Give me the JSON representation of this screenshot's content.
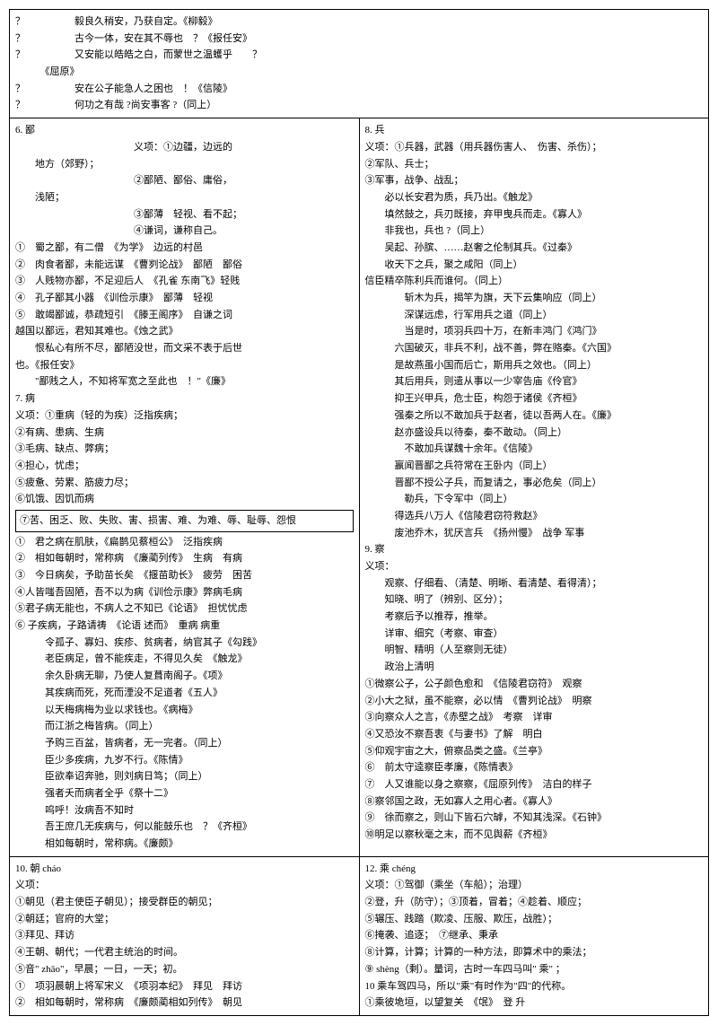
{
  "top": {
    "lines": [
      "？　　　　　毅良久稍安，乃获自定。《柳毅》",
      "？　　　　　古今一体，安在其不辱也　？《报任安》",
      "？　　　　　又安能以皓皓之白，而蒙世之温蠖乎　　？",
      "　　　《屈原》",
      "？　　　　　安在公子能急人之困也　！《信陵》",
      "？　　　　　何功之有哉 ?尚安事客 ?（同上）"
    ]
  },
  "r1c1": {
    "title": "6. 鄙",
    "yixiang_intro": "义项：①边疆，边远的",
    "line2": "地方（郊野）；",
    "line3": "②鄙陋、鄙俗、庸俗，",
    "line4": "浅陋；",
    "line5": "③鄙薄　轻视、看不起；",
    "line6": "④谦词，谦称自己。",
    "ex": [
      "①　蜀之鄙，有二僧　《为学》　边远的村邑",
      "②　肉食者鄙，未能远谋　《曹刿论战》　鄙陋　鄙俗",
      "③　人贱物亦鄙，不足迎后人　《孔雀 东南飞》轻贱",
      "④　孔子鄙其小器　《训俭示康》　鄙薄　轻视",
      "⑤　敢竭鄙诚，恭疏短引　《滕王阁序》　自谦之词",
      "越国以鄙远，君知其难也。《烛之武》",
      "　　恨私心有所不尽，鄙陋没世，而文采不表于后世",
      "也。《报任安》",
      "　　\"鄙贱之人，不知将军宽之至此也　！\"《廉》"
    ],
    "s7_title": "7. 病",
    "s7_yi": [
      "义项：①重病（轻的为疾）泛指疾病；",
      "②有病、患病、生病",
      "③毛病、缺点、弊病；",
      "④担心，忧虑；",
      "⑤疲惫、劳累、筋疲力尽；",
      "⑥饥饿、因饥而病"
    ],
    "s7_box": "⑦苦、困乏、败、失败、害、损害、难、为难、辱、耻辱、怨恨",
    "s7_ex": [
      "①　君之病在肌肤，《扁鹊见蔡桓公》　泛指疾病",
      "②　相如每朝时，常称病　《廉蔺列传》　生病　有病",
      "③　今日病矣，予助苗长矣　《揠苗助长》　疲劳　困苦",
      "④人皆嗤吾固陋，吾不以为病《训俭示康》弊病毛病",
      "⑤君子病无能也，不病人之不知已《论语》　担忧忧虑",
      "⑥ 子疾病，子路请祷　《论语 述而》　重病 病重",
      "　　　令孤子、寡妇、疾疹、贫病者，纳官其子《勾践》",
      "　　　老臣病足，曾不能疾走，不得见久矣　《触龙》",
      "　　　余久卧病无聊，乃使人复葺南阁子。《项》",
      "　　　其疾病而死，死而湮没不足道者《五人》",
      "　　　以天梅病梅为业以求钱也。《病梅》",
      "　　　而江浙之梅皆病。（同上）",
      "　　　予购三百盆，皆病者，无一完者。（同上）",
      "　　　臣少多疾病，九岁不行。《陈情》",
      "　　　臣欲奉诏奔驰，则刘病日笃；（同上）",
      "　　　强者夭而病者全乎《祭十二》",
      "　　　呜呼！汝病吾不知时",
      "　　　吾王庶几无疾病与，何以能鼓乐也　？《齐桓》",
      "　　　相如每朝时，常称病。《廉颇》"
    ]
  },
  "r1c2": {
    "title": "8. 兵",
    "yi": [
      "义项：①兵器，武器（用兵器伤害人、　伤害、杀伤）；",
      "②军队、兵士；",
      "③军事，战争、战乱；",
      "　　必以长安君为质，兵乃出。《触龙》",
      "　　填然鼓之，兵刃既接，弃甲曳兵而走。《寡人》",
      "　　非我也，兵也 ?（同上）",
      "　　吴起、孙膑、……赵奢之伦制其兵。《过秦》",
      "　　收天下之兵，聚之咸阳（同上）",
      "信臣精卒陈利兵而谁何。（同上）",
      "　　　　斩木为兵，揭竿为旗，天下云集响应（同上）",
      "　　　　深谋远虑，行军用兵之道（同上）",
      "　　　　当是时，项羽兵四十万，在新丰鸿门《鸿门》",
      "　　　六国破灭，非兵不利，战不善，弊在赂秦。《六国》",
      "　　　是故燕虽小国而后亡，斯用兵之效也。（同上）",
      "　　　其后用兵，则遣从事以一少宰告庙《伶官》",
      "　　　抑王兴甲兵，危士臣，构怨于诸侯《齐桓》",
      "　　　强秦之所以不敢加兵于赵者，徒以吾两人在。《廉》",
      "　　　赵亦盛设兵以待秦，秦不敢动。（同上）",
      "　　　　不敢加兵谋魏十余年。《信陵》",
      "　　　嬴闻晋鄙之兵符常在王卧内（同上）",
      "　　　晋鄙不授公子兵，而复请之，事必危矣（同上）",
      "　　　　勒兵，下令军中（同上）",
      "　　　得选兵八万人《信陵君窃符救赵》",
      "　　　废池乔木，犹厌言兵　《扬州慢》　战争 军事"
    ],
    "s9_title": "9. 察",
    "s9_yi_label": "义项：",
    "s9_yi": [
      "　　观察、仔细看、（清楚、明晰、看清楚、看得清）；",
      "　　知晓、明了（辨别、区分）；",
      "　　考察后予以推荐，推举。",
      "　　详审、细究（考察、审查）",
      "　　明智、精明（人至察则无徒）",
      "　　政治上清明"
    ],
    "s9_ex": [
      "①微察公子，公子颜色愈和　《信陵君窃符》　观察",
      "②小大之狱，虽不能察，必以情　《曹刿论战》　明察",
      "③向察众人之言，《赤壁之战》　考察　详审",
      "④又恐汝不察吾衷《与妻书》了解　明白",
      "⑤仰观宇宙之大，俯察品类之盛。《兰亭》",
      "⑥　前太守逵察臣孝廉，《陈情表》",
      "⑦　人又谁能以身之察察，《屈原列传》　洁白的样子",
      "⑧察邻国之政，无如寡人之用心者。《寡人》",
      "⑨　徐而察之，则山下皆石穴罅，不知其浅深。《石钟》",
      "⑩明足以察秋毫之末，而不见舆薪《齐桓》"
    ]
  },
  "r2c1": {
    "title": "10. 朝 cháo",
    "yi": [
      "义项：",
      "①朝见（君主使臣子朝见）；接受群臣的朝见；",
      "②朝廷；官府的大堂；",
      "③拜见、拜访",
      "④王朝、朝代；一代君主统治的时间。",
      "⑤音\" zhāo\"，早晨；一日，一天；初。",
      "①　项羽晨朝上将军宋义　《项羽本纪》　拜见　拜访",
      "②　相如每朝时，常称病　《廉颇蔺相如列传》　朝见"
    ]
  },
  "r2c2": {
    "title": "12. 乘 chéng",
    "yi": [
      "义项：①驾御（乘坐（车船）；治理）",
      "②登，升（防守）；③顶着，冒着；④趁着、顺应；",
      "⑤辗压、践踏（欺凌、压服、欺压，战胜）；",
      "⑥掩袭、追逐；　⑦继承、秉承",
      "⑧计算，计算；计算的一种方法，即算术中的乘法；",
      "⑨ shèng（剩）。量词，古时一车四马叫\" 乘\" ；",
      "10 乘车驾四马，所以\"乘\"有时作为\"四\"的代称。",
      "①乘彼垝垣，以望复关　《氓》　登 升"
    ]
  }
}
